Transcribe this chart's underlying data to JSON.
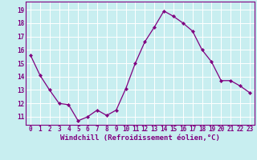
{
  "x": [
    0,
    1,
    2,
    3,
    4,
    5,
    6,
    7,
    8,
    9,
    10,
    11,
    12,
    13,
    14,
    15,
    16,
    17,
    18,
    19,
    20,
    21,
    22,
    23
  ],
  "y": [
    15.6,
    14.1,
    13.0,
    12.0,
    11.9,
    10.7,
    11.0,
    11.5,
    11.1,
    11.5,
    13.1,
    15.0,
    16.6,
    17.7,
    18.9,
    18.5,
    18.0,
    17.4,
    16.0,
    15.1,
    13.7,
    13.7,
    13.3,
    12.8
  ],
  "line_color": "#800080",
  "marker": "D",
  "markersize": 2.2,
  "linewidth": 0.9,
  "bg_color": "#c8eef0",
  "grid_color": "#ffffff",
  "xlabel": "Windchill (Refroidissement éolien,°C)",
  "xlabel_color": "#800080",
  "tick_color": "#800080",
  "ylabel_ticks": [
    11,
    12,
    13,
    14,
    15,
    16,
    17,
    18,
    19
  ],
  "xlim": [
    -0.5,
    23.5
  ],
  "ylim": [
    10.4,
    19.6
  ],
  "figsize": [
    3.2,
    2.0
  ],
  "dpi": 100,
  "tick_fontsize": 5.5,
  "xlabel_fontsize": 6.5
}
